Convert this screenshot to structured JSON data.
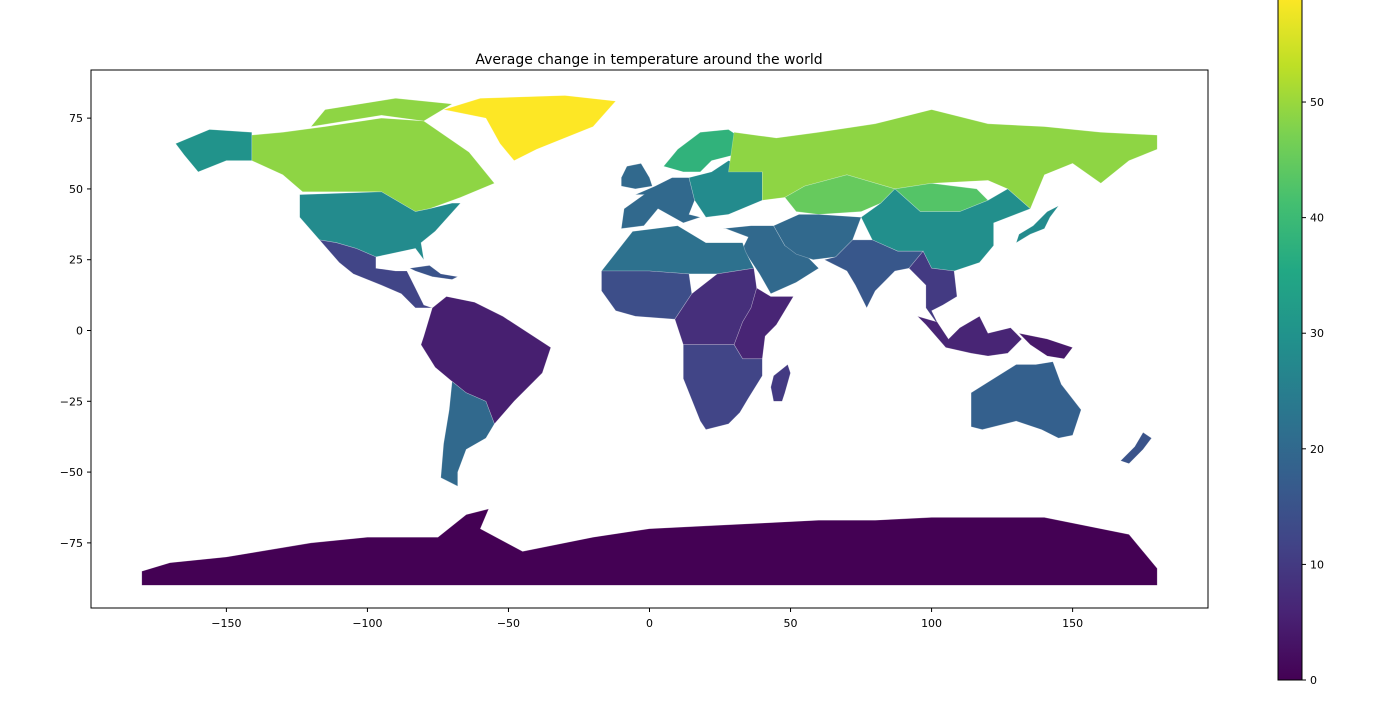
{
  "chart_data": {
    "type": "choropleth-map",
    "title": "Average change in temperature around the world",
    "xlabel": "",
    "ylabel": "",
    "xlim": [
      -198,
      198
    ],
    "ylim": [
      -98,
      92
    ],
    "x_ticks": [
      -150,
      -100,
      -50,
      0,
      50,
      100,
      150
    ],
    "y_ticks": [
      -75,
      -50,
      -25,
      0,
      25,
      50,
      75
    ],
    "x_tick_labels": [
      "−150",
      "−100",
      "−50",
      "0",
      "50",
      "100",
      "150"
    ],
    "y_tick_labels": [
      "−75",
      "−50",
      "−25",
      "0",
      "25",
      "50",
      "75"
    ],
    "colormap": "viridis",
    "colorbar": {
      "range": [
        0,
        59
      ],
      "ticks": [
        0,
        10,
        20,
        30,
        40,
        50
      ],
      "tick_labels": [
        "0",
        "10",
        "20",
        "30",
        "40",
        "50"
      ]
    },
    "regions": [
      {
        "name": "Greenland",
        "value": 59
      },
      {
        "name": "Canada",
        "value": 49
      },
      {
        "name": "Russia",
        "value": 49
      },
      {
        "name": "Kazakhstan",
        "value": 45
      },
      {
        "name": "Alaska",
        "value": 30
      },
      {
        "name": "United States",
        "value": 28
      },
      {
        "name": "China",
        "value": 29
      },
      {
        "name": "Mongolia",
        "value": 43
      },
      {
        "name": "Japan",
        "value": 28
      },
      {
        "name": "Scandinavia",
        "value": 38
      },
      {
        "name": "Western Europe",
        "value": 20
      },
      {
        "name": "Eastern Europe",
        "value": 28
      },
      {
        "name": "Middle East",
        "value": 20
      },
      {
        "name": "North Africa",
        "value": 22
      },
      {
        "name": "West Africa",
        "value": 14
      },
      {
        "name": "Central Africa",
        "value": 8
      },
      {
        "name": "East Africa",
        "value": 6
      },
      {
        "name": "Southern Africa",
        "value": 12
      },
      {
        "name": "Madagascar",
        "value": 10
      },
      {
        "name": "Mexico & Central America",
        "value": 12
      },
      {
        "name": "Caribbean",
        "value": 15
      },
      {
        "name": "South America (north)",
        "value": 5
      },
      {
        "name": "Argentina & Chile",
        "value": 20
      },
      {
        "name": "India",
        "value": 16
      },
      {
        "name": "Southeast Asia",
        "value": 10
      },
      {
        "name": "Indonesia",
        "value": 6
      },
      {
        "name": "Papua New Guinea",
        "value": 4
      },
      {
        "name": "Australia",
        "value": 18
      },
      {
        "name": "New Zealand",
        "value": 15
      },
      {
        "name": "Antarctica",
        "value": 0
      }
    ]
  }
}
